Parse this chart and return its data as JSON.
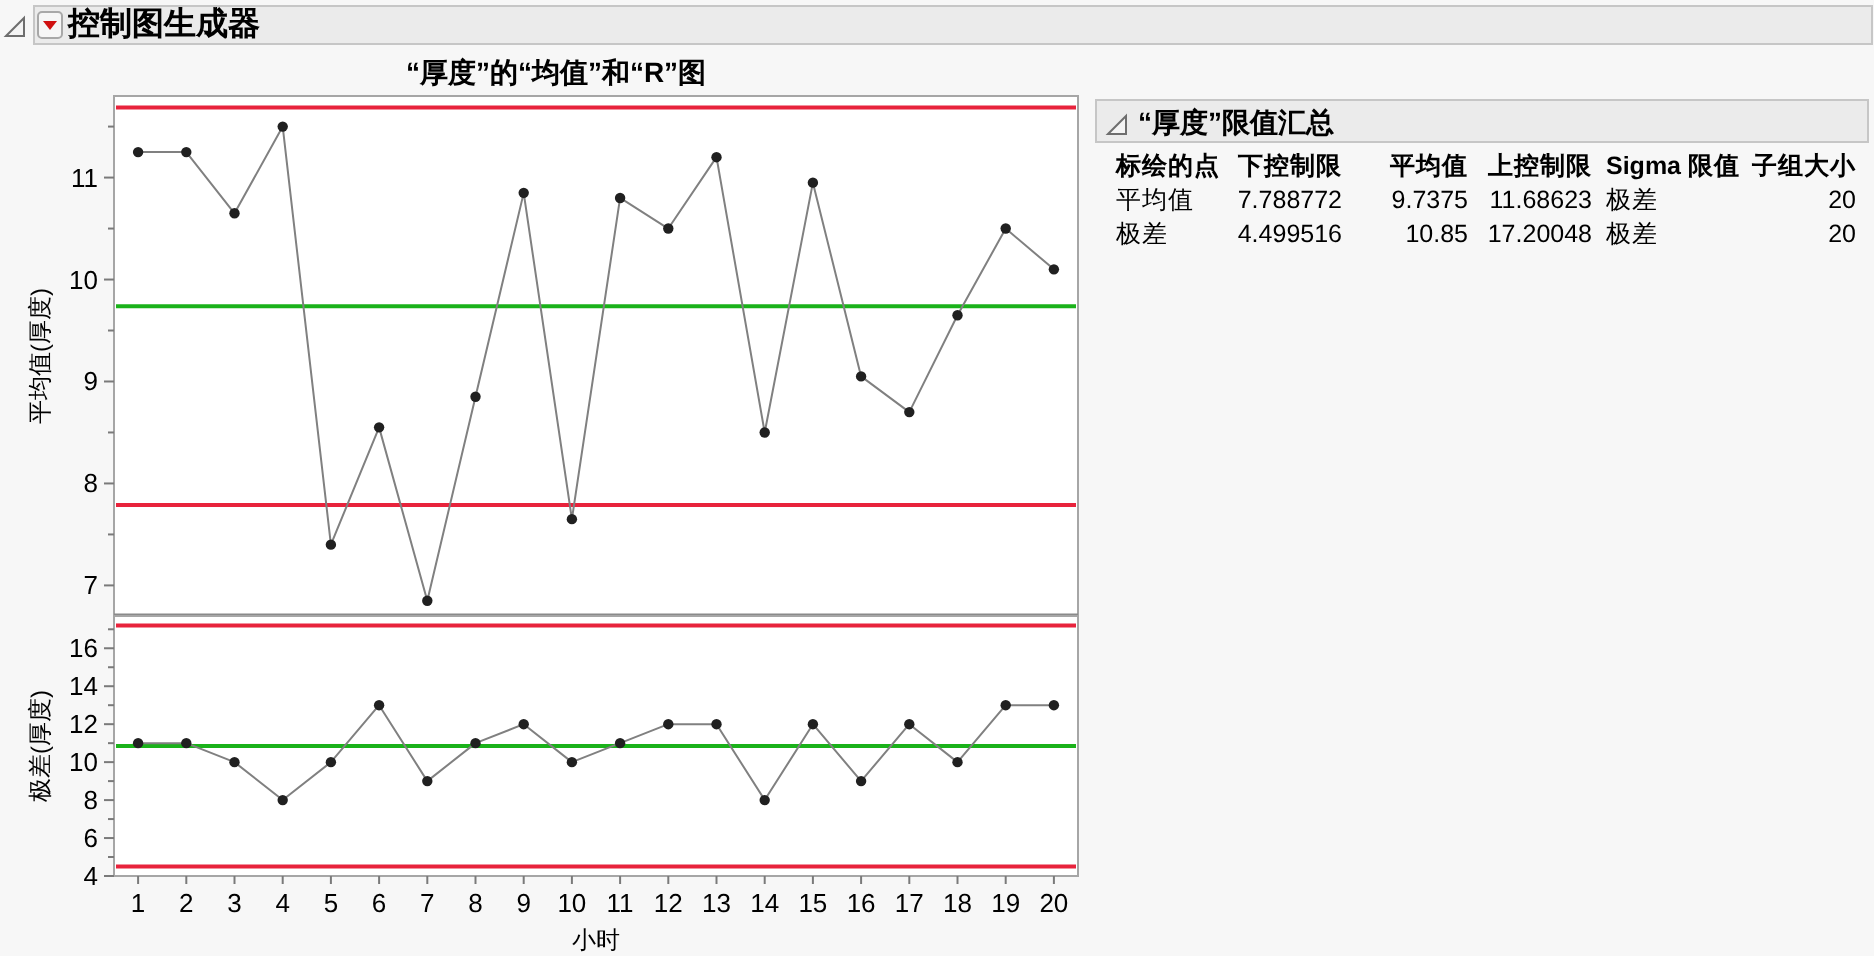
{
  "chart_data": [
    {
      "type": "line",
      "title": "“厚度”的“均值”和“R”图",
      "annotations": [
        "控制图生成器"
      ],
      "ylabel": "平均值(厚度)",
      "x": [
        1,
        2,
        3,
        4,
        5,
        6,
        7,
        8,
        9,
        10,
        11,
        12,
        13,
        14,
        15,
        16,
        17,
        18,
        19,
        20
      ],
      "xlim": [
        0.5,
        20.5
      ],
      "series": [
        {
          "color": "#808080",
          "values": [
            11.25,
            11.25,
            10.65,
            11.5,
            7.4,
            8.55,
            6.85,
            8.85,
            10.85,
            7.65,
            10.8,
            10.5,
            11.2,
            8.5,
            10.95,
            9.05,
            8.7,
            9.65,
            10.5,
            10.1
          ]
        }
      ],
      "ylim": [
        6.7,
        11.8
      ],
      "yticks": [
        7,
        {
          "value": 7.5,
          "label": null
        },
        8,
        {
          "value": 8.5,
          "label": null
        },
        9,
        {
          "value": 9.5,
          "label": null
        },
        10,
        {
          "value": 10.5,
          "label": null
        },
        11,
        {
          "value": 11.5,
          "label": null
        }
      ],
      "tick_labels": "y",
      "marker": "circle",
      "ref_lines": [
        {
          "axis": "y",
          "value": 11.68623,
          "color": "#e8233c"
        },
        {
          "axis": "y",
          "value": 9.7375,
          "color": "#1ab21a"
        },
        {
          "axis": "y",
          "value": 7.788772,
          "color": "#e8233c"
        }
      ]
    },
    {
      "type": "line",
      "ylabel": "极差(厚度)",
      "xlabel": "小时",
      "x": [
        1,
        2,
        3,
        4,
        5,
        6,
        7,
        8,
        9,
        10,
        11,
        12,
        13,
        14,
        15,
        16,
        17,
        18,
        19,
        20
      ],
      "xlim": [
        0.5,
        20.5
      ],
      "xticks": [
        1,
        2,
        3,
        4,
        5,
        6,
        7,
        8,
        9,
        10,
        11,
        12,
        13,
        14,
        15,
        16,
        17,
        18,
        19,
        20
      ],
      "series": [
        {
          "color": "#808080",
          "values": [
            11,
            11,
            10,
            8,
            10,
            13,
            9,
            11,
            12,
            10,
            11,
            12,
            12,
            8,
            12,
            9,
            12,
            10,
            13,
            13
          ]
        }
      ],
      "ylim": [
        4,
        17.7
      ],
      "yticks": [
        4,
        {
          "value": 5,
          "label": null
        },
        6,
        {
          "value": 7,
          "label": null
        },
        8,
        {
          "value": 9,
          "label": null
        },
        10,
        {
          "value": 11,
          "label": null
        },
        12,
        {
          "value": 13,
          "label": null
        },
        14,
        {
          "value": 15,
          "label": null
        },
        16,
        {
          "value": 17,
          "label": null
        }
      ],
      "marker": "circle",
      "ref_lines": [
        {
          "axis": "y",
          "value": 17.20048,
          "color": "#e8233c"
        },
        {
          "axis": "y",
          "value": 10.85,
          "color": "#1ab21a"
        },
        {
          "axis": "y",
          "value": 4.499516,
          "color": "#e8233c"
        }
      ]
    },
    {
      "type": "other",
      "title": "“厚度”限值汇总",
      "annotations": [
        "标绘的点",
        "下控制限",
        "平均值",
        "上控制限",
        "Sigma 限值",
        "子组大小",
        "平均值",
        "7.788772",
        "9.7375",
        "11.68623",
        "极差",
        "20",
        "极差",
        "4.499516",
        "10.85",
        "17.20048",
        "极差",
        "20"
      ]
    }
  ]
}
